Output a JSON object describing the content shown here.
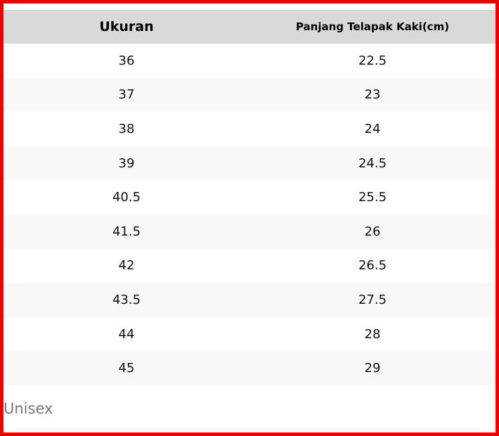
{
  "table": {
    "header": [
      "Ukuran",
      "Panjang Telapak Kaki(cm)"
    ],
    "rows": [
      [
        "36",
        "22.5"
      ],
      [
        "37",
        "23"
      ],
      [
        "38",
        "24"
      ],
      [
        "39",
        "24.5"
      ],
      [
        "40.5",
        "25.5"
      ],
      [
        "41.5",
        "26"
      ],
      [
        "42",
        "26.5"
      ],
      [
        "43.5",
        "27.5"
      ],
      [
        "44",
        "28"
      ],
      [
        "45",
        "29"
      ]
    ]
  },
  "footer": "Unisex"
}
